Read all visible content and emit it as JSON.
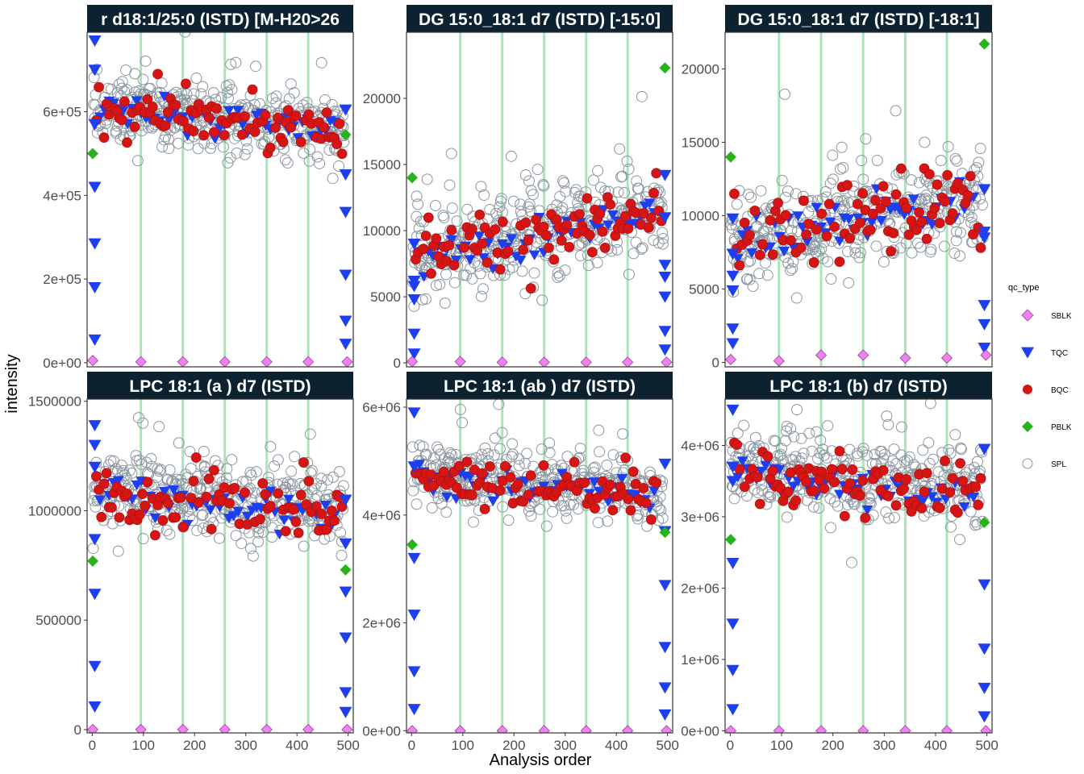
{
  "chart_data": {
    "type": "scatter",
    "xlabel": "Analysis order",
    "ylabel": "intensity",
    "xticks": [
      0,
      100,
      200,
      300,
      400,
      500
    ],
    "xlim": [
      -10,
      510
    ],
    "batch_lines": [
      95,
      177,
      259,
      341,
      422
    ],
    "colors": {
      "strip_bg": "#0d2231",
      "batch_line": "#a8e6b8",
      "SBLK": "#ee82ee",
      "TQC": "#1e3ff0",
      "BQC": "#d61515",
      "PBLK": "#27b41b",
      "SPL": "#8c96a0"
    },
    "legend": {
      "title": "qc_type",
      "entries": [
        {
          "name": "SBLK",
          "shape": "diamond-open-filled"
        },
        {
          "name": "TQC",
          "shape": "triangle-down"
        },
        {
          "name": "BQC",
          "shape": "circle-filled"
        },
        {
          "name": "PBLK",
          "shape": "diamond-filled"
        },
        {
          "name": "SPL",
          "shape": "circle-open"
        }
      ]
    },
    "panels": [
      {
        "title": "r d18:1/25:0 (ISTD) [M-H20>26",
        "ylim": [
          -10000,
          790000
        ],
        "yticks": [
          0,
          200000,
          400000,
          600000
        ],
        "ytick_labels": [
          "0e+00",
          "2e+05",
          "4e+05",
          "6e+05"
        ],
        "spl_mean": 605000,
        "spl_sd": 40000,
        "spl_trend": -50000,
        "bqc_mean": 600000,
        "bqc_sd": 30000,
        "tqc_mid": 600000,
        "tqc_start": [
          770000,
          700000,
          570000,
          420000,
          285000,
          180000,
          55000
        ],
        "tqc_end": [
          605000,
          450000,
          360000,
          210000,
          100000,
          45000
        ],
        "pblk": [
          [
            1,
            500000
          ],
          [
            495,
            545000
          ]
        ],
        "sblk": [
          [
            1,
            5000
          ],
          [
            95,
            2000
          ],
          [
            177,
            2000
          ],
          [
            259,
            2000
          ],
          [
            341,
            2000
          ],
          [
            422,
            2000
          ],
          [
            498,
            2000
          ]
        ]
      },
      {
        "title": "DG 15:0_18:1 d7 (ISTD) [-15:0]",
        "ylim": [
          -300,
          25000
        ],
        "yticks": [
          0,
          5000,
          10000,
          15000,
          20000
        ],
        "ytick_labels": [
          "0",
          "5000",
          "10000",
          "15000",
          "20000"
        ],
        "spl_mean": 7800,
        "spl_sd": 1700,
        "spl_trend": 4000,
        "bqc_mean": 8200,
        "bqc_sd": 1200,
        "tqc_mid": 7800,
        "tqc_start": [
          9000,
          6200,
          5800,
          4800,
          2200,
          700
        ],
        "tqc_end": [
          14200,
          11000,
          7400,
          6500,
          5000,
          2400,
          1000
        ],
        "pblk": [
          [
            1,
            14000
          ],
          [
            495,
            22300
          ]
        ],
        "sblk": [
          [
            1,
            100
          ],
          [
            95,
            100
          ],
          [
            177,
            50
          ],
          [
            259,
            50
          ],
          [
            341,
            50
          ],
          [
            422,
            50
          ],
          [
            498,
            50
          ]
        ]
      },
      {
        "title": "DG 15:0_18:1 d7 (ISTD) [-18:1]",
        "ylim": [
          -300,
          22500
        ],
        "yticks": [
          0,
          5000,
          10000,
          15000,
          20000
        ],
        "ytick_labels": [
          "0",
          "5000",
          "10000",
          "15000",
          "20000"
        ],
        "spl_mean": 8000,
        "spl_sd": 1500,
        "spl_trend": 3500,
        "bqc_mean": 8200,
        "bqc_sd": 1400,
        "tqc_mid": 8200,
        "tqc_start": [
          9800,
          7400,
          5900,
          4900,
          2300,
          1300
        ],
        "tqc_end": [
          11800,
          8900,
          8500,
          3900,
          2600,
          1000
        ],
        "pblk": [
          [
            1,
            14000
          ],
          [
            495,
            21700
          ]
        ],
        "sblk": [
          [
            1,
            200
          ],
          [
            95,
            100
          ],
          [
            177,
            500
          ],
          [
            259,
            500
          ],
          [
            341,
            300
          ],
          [
            422,
            300
          ],
          [
            498,
            500
          ]
        ]
      },
      {
        "title": "LPC 18:1 (a ) d7 (ISTD)",
        "ylim": [
          -15000,
          1510000
        ],
        "yticks": [
          0,
          500000,
          1000000,
          1500000
        ],
        "ytick_labels": [
          "0",
          "500000",
          "1000000",
          "1500000"
        ],
        "spl_mean": 1120000,
        "spl_sd": 95000,
        "spl_trend": -110000,
        "bqc_mean": 1070000,
        "bqc_sd": 70000,
        "tqc_mid": 1080000,
        "tqc_start": [
          1390000,
          1300000,
          1200000,
          870000,
          620000,
          290000,
          105000
        ],
        "tqc_end": [
          1050000,
          850000,
          630000,
          420000,
          170000,
          80000
        ],
        "pblk": [
          [
            1,
            770000
          ],
          [
            495,
            730000
          ]
        ],
        "sblk": [
          [
            1,
            0
          ],
          [
            95,
            0
          ],
          [
            177,
            0
          ],
          [
            259,
            0
          ],
          [
            341,
            0
          ],
          [
            422,
            0
          ],
          [
            498,
            0
          ]
        ]
      },
      {
        "title": "LPC 18:1 (ab ) d7 (ISTD)",
        "ylim": [
          -40000,
          6150000
        ],
        "yticks": [
          0,
          2000000,
          4000000,
          6000000
        ],
        "ytick_labels": [
          "0e+00",
          "2e+06",
          "4e+06",
          "6e+06"
        ],
        "spl_mean": 4750000,
        "spl_sd": 280000,
        "spl_trend": -350000,
        "bqc_mean": 4650000,
        "bqc_sd": 230000,
        "tqc_mid": 4650000,
        "tqc_start": [
          5900000,
          4900000,
          3200000,
          2150000,
          1100000,
          400000
        ],
        "tqc_end": [
          4950000,
          3700000,
          2700000,
          1550000,
          800000,
          300000
        ],
        "pblk": [
          [
            1,
            3450000
          ],
          [
            495,
            3680000
          ]
        ],
        "sblk": [
          [
            1,
            0
          ],
          [
            95,
            0
          ],
          [
            177,
            0
          ],
          [
            259,
            0
          ],
          [
            341,
            0
          ],
          [
            422,
            0
          ],
          [
            498,
            0
          ]
        ]
      },
      {
        "title": "LPC 18:1 (b) d7 (ISTD)",
        "ylim": [
          -30000,
          4650000
        ],
        "yticks": [
          0,
          1000000,
          2000000,
          3000000,
          4000000
        ],
        "ytick_labels": [
          "0e+00",
          "1e+06",
          "2e+06",
          "3e+06",
          "4e+06"
        ],
        "spl_mean": 3700000,
        "spl_sd": 250000,
        "spl_trend": -300000,
        "bqc_mean": 3600000,
        "bqc_sd": 200000,
        "tqc_mid": 3550000,
        "tqc_start": [
          4500000,
          3700000,
          3500000,
          2350000,
          1500000,
          850000,
          300000
        ],
        "tqc_end": [
          3950000,
          2050000,
          1150000,
          600000,
          200000
        ],
        "pblk": [
          [
            1,
            2680000
          ],
          [
            495,
            2920000
          ]
        ],
        "sblk": [
          [
            1,
            0
          ],
          [
            95,
            0
          ],
          [
            177,
            0
          ],
          [
            259,
            0
          ],
          [
            341,
            0
          ],
          [
            422,
            0
          ],
          [
            498,
            0
          ]
        ]
      }
    ]
  }
}
